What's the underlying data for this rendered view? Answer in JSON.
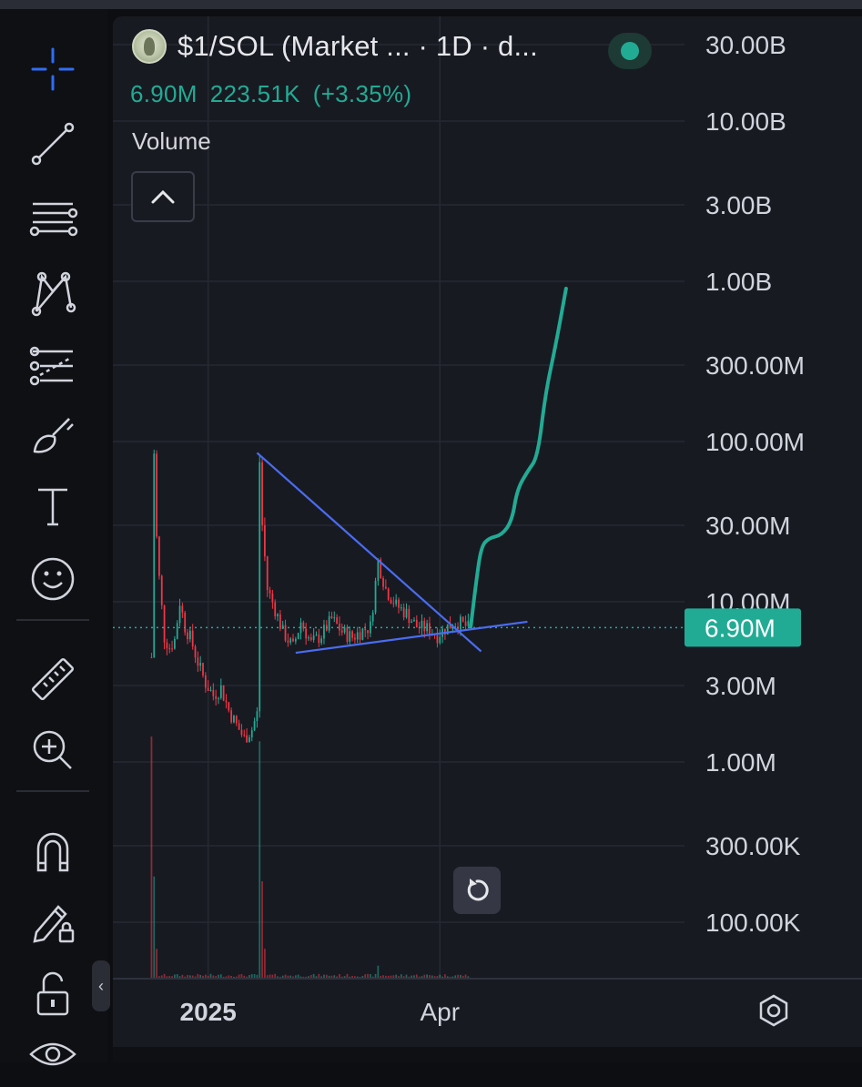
{
  "header": {
    "title": "$1/SOL (Market ... · 1D · d...",
    "last": "6.90M",
    "change": "223.51K",
    "change_pct": "(+3.35%)",
    "volume_label": "Volume"
  },
  "colors": {
    "up": "#22ab94",
    "down": "#f23645",
    "trendline": "#4a6cf0",
    "projection": "#22ab94",
    "axis_text": "#d1d4dc"
  },
  "toolbar": {
    "icons": [
      "crosshair-icon",
      "trend-line-icon",
      "fib-retracement-icon",
      "pattern-icon",
      "prediction-icon",
      "brush-icon",
      "text-icon",
      "emoji-icon",
      "ruler-icon",
      "zoom-in-icon",
      "magnet-icon",
      "lock-drawing-icon",
      "unlock-icon",
      "eye-icon"
    ]
  },
  "chart_data": {
    "type": "candlestick",
    "y_scale": "log",
    "ylim": [
      45000,
      45000000000
    ],
    "y_ticks": [
      {
        "label": "30.00B",
        "value": 30000000000
      },
      {
        "label": "10.00B",
        "value": 10000000000
      },
      {
        "label": "3.00B",
        "value": 3000000000
      },
      {
        "label": "1.00B",
        "value": 1000000000
      },
      {
        "label": "300.00M",
        "value": 300000000
      },
      {
        "label": "100.00M",
        "value": 100000000
      },
      {
        "label": "30.00M",
        "value": 30000000
      },
      {
        "label": "10.00M",
        "value": 10000000
      },
      {
        "label": "3.00M",
        "value": 3000000
      },
      {
        "label": "1.00M",
        "value": 1000000
      },
      {
        "label": "300.00K",
        "value": 300000
      },
      {
        "label": "100.00K",
        "value": 100000
      }
    ],
    "x_ticks": [
      {
        "label": "2025",
        "date": "2025-01-01"
      },
      {
        "label": "Apr",
        "date": "2025-04-01"
      }
    ],
    "xlim": [
      "2024-11-25",
      "2025-07-05"
    ],
    "last_price": {
      "value": 6900000,
      "label": "6.90M"
    },
    "price_path": [
      [
        "2024-12-10",
        4500000
      ],
      [
        "2024-12-11",
        85000000
      ],
      [
        "2024-12-12",
        25000000
      ],
      [
        "2024-12-13",
        14000000
      ],
      [
        "2024-12-15",
        6000000
      ],
      [
        "2024-12-17",
        5200000
      ],
      [
        "2024-12-19",
        5800000
      ],
      [
        "2024-12-21",
        10000000
      ],
      [
        "2024-12-23",
        7000000
      ],
      [
        "2024-12-25",
        6000000
      ],
      [
        "2024-12-28",
        4200000
      ],
      [
        "2024-12-31",
        3100000
      ],
      [
        "2025-01-03",
        2600000
      ],
      [
        "2025-01-06",
        2900000
      ],
      [
        "2025-01-09",
        2100000
      ],
      [
        "2025-01-12",
        1700000
      ],
      [
        "2025-01-15",
        1400000
      ],
      [
        "2025-01-18",
        1600000
      ],
      [
        "2025-01-20",
        2000000
      ],
      [
        "2025-01-21",
        75000000
      ],
      [
        "2025-01-22",
        30000000
      ],
      [
        "2025-01-24",
        12000000
      ],
      [
        "2025-01-27",
        9000000
      ],
      [
        "2025-01-30",
        6500000
      ],
      [
        "2025-02-03",
        5200000
      ],
      [
        "2025-02-06",
        7500000
      ],
      [
        "2025-02-10",
        5500000
      ],
      [
        "2025-02-14",
        6200000
      ],
      [
        "2025-02-18",
        7800000
      ],
      [
        "2025-02-22",
        6500000
      ],
      [
        "2025-02-26",
        6000000
      ],
      [
        "2025-03-01",
        6500000
      ],
      [
        "2025-03-05",
        7000000
      ],
      [
        "2025-03-08",
        18000000
      ],
      [
        "2025-03-11",
        12000000
      ],
      [
        "2025-03-15",
        9500000
      ],
      [
        "2025-03-19",
        8500000
      ],
      [
        "2025-03-23",
        7000000
      ],
      [
        "2025-03-27",
        6800000
      ],
      [
        "2025-03-31",
        6200000
      ],
      [
        "2025-04-04",
        7000000
      ],
      [
        "2025-04-08",
        7500000
      ],
      [
        "2025-04-12",
        6900000
      ]
    ],
    "volume_spikes": [
      [
        "2024-12-10",
        1.0
      ],
      [
        "2024-12-11",
        0.42
      ],
      [
        "2024-12-12",
        0.12
      ],
      [
        "2025-01-21",
        0.98
      ],
      [
        "2025-01-22",
        0.4
      ],
      [
        "2025-01-23",
        0.12
      ],
      [
        "2025-03-08",
        0.05
      ]
    ],
    "drawings": {
      "upper_trendline": [
        [
          "2025-01-20",
          85000000
        ],
        [
          "2025-04-17",
          4900000
        ]
      ],
      "lower_trendline": [
        [
          "2025-02-04",
          4800000
        ],
        [
          "2025-05-05",
          7500000
        ]
      ],
      "projection_curve": [
        [
          "2025-04-13",
          7000000
        ],
        [
          "2025-04-15",
          13000000
        ],
        [
          "2025-04-17",
          22000000
        ],
        [
          "2025-04-20",
          25000000
        ],
        [
          "2025-04-25",
          26000000
        ],
        [
          "2025-04-29",
          32000000
        ],
        [
          "2025-05-01",
          50000000
        ],
        [
          "2025-05-05",
          65000000
        ],
        [
          "2025-05-09",
          80000000
        ],
        [
          "2025-05-12",
          200000000
        ],
        [
          "2025-05-16",
          400000000
        ],
        [
          "2025-05-20",
          900000000
        ]
      ]
    }
  }
}
